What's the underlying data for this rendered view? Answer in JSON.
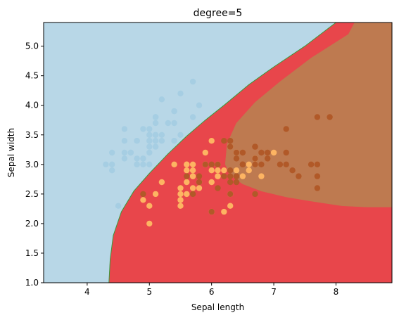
{
  "chart_data": {
    "type": "scatter",
    "title": "degree=5",
    "xlabel": "Sepal length",
    "ylabel": "Sepal width",
    "xlim": [
      3.3,
      8.9
    ],
    "ylim": [
      1.0,
      5.4
    ],
    "xticks": [
      4,
      5,
      6,
      7,
      8
    ],
    "yticks": [
      1.0,
      1.5,
      2.0,
      2.5,
      3.0,
      3.5,
      4.0,
      4.5,
      5.0
    ],
    "xtick_labels": [
      "4",
      "5",
      "6",
      "7",
      "8"
    ],
    "ytick_labels": [
      "1.0",
      "1.5",
      "2.0",
      "2.5",
      "3.0",
      "3.5",
      "4.0",
      "4.5",
      "5.0"
    ],
    "grid": false,
    "legend": "none",
    "decision_regions": [
      {
        "class": 0,
        "color": "#b8d7e7",
        "boundary": [
          [
            3.3,
            1.0
          ],
          [
            4.35,
            1.0
          ],
          [
            4.37,
            1.4
          ],
          [
            4.42,
            1.8
          ],
          [
            4.55,
            2.2
          ],
          [
            4.75,
            2.55
          ],
          [
            5.0,
            2.85
          ],
          [
            5.3,
            3.18
          ],
          [
            5.6,
            3.48
          ],
          [
            5.9,
            3.75
          ],
          [
            6.2,
            4.0
          ],
          [
            6.6,
            4.35
          ],
          [
            7.0,
            4.65
          ],
          [
            7.5,
            5.0
          ],
          [
            8.0,
            5.4
          ],
          [
            3.3,
            5.4
          ]
        ]
      },
      {
        "class": 1,
        "color": "#e8464b",
        "boundary": [
          [
            4.35,
            1.0
          ],
          [
            8.9,
            1.0
          ],
          [
            8.9,
            5.4
          ],
          [
            8.0,
            5.4
          ],
          [
            7.5,
            5.0
          ],
          [
            7.0,
            4.65
          ],
          [
            6.6,
            4.35
          ],
          [
            6.2,
            4.0
          ],
          [
            5.9,
            3.75
          ],
          [
            5.6,
            3.48
          ],
          [
            5.3,
            3.18
          ],
          [
            5.0,
            2.85
          ],
          [
            4.75,
            2.55
          ],
          [
            4.55,
            2.2
          ],
          [
            4.42,
            1.8
          ],
          [
            4.37,
            1.4
          ]
        ]
      },
      {
        "class": 2,
        "color": "#be7a50",
        "boundary": [
          [
            6.22,
            3.0
          ],
          [
            6.25,
            3.35
          ],
          [
            6.4,
            3.7
          ],
          [
            6.7,
            4.05
          ],
          [
            7.1,
            4.4
          ],
          [
            7.6,
            4.8
          ],
          [
            8.2,
            5.2
          ],
          [
            8.3,
            5.4
          ],
          [
            8.9,
            5.4
          ],
          [
            8.9,
            2.28
          ],
          [
            8.5,
            2.28
          ],
          [
            8.1,
            2.3
          ],
          [
            7.6,
            2.38
          ],
          [
            7.2,
            2.45
          ],
          [
            6.8,
            2.55
          ],
          [
            6.5,
            2.67
          ],
          [
            6.3,
            2.82
          ]
        ]
      }
    ],
    "series": [
      {
        "class": 0,
        "color": "#a6cee3",
        "x": [
          5.1,
          4.9,
          4.7,
          4.6,
          5.0,
          5.4,
          4.6,
          5.0,
          4.4,
          4.9,
          5.4,
          4.8,
          4.8,
          4.3,
          5.8,
          5.7,
          5.4,
          5.1,
          5.7,
          5.1,
          5.4,
          5.1,
          4.6,
          5.1,
          4.8,
          5.0,
          5.0,
          5.2,
          5.2,
          4.7,
          4.8,
          5.4,
          5.2,
          5.5,
          4.9,
          5.0,
          5.5,
          4.9,
          4.4,
          5.1,
          5.0,
          4.5,
          4.4,
          5.0,
          5.1,
          4.8,
          5.1,
          4.6,
          5.3,
          5.0
        ],
        "y": [
          3.5,
          3.0,
          3.2,
          3.1,
          3.6,
          3.9,
          3.4,
          3.4,
          2.9,
          3.1,
          3.7,
          3.4,
          3.0,
          3.0,
          4.0,
          4.4,
          3.9,
          3.5,
          3.8,
          3.8,
          3.4,
          3.7,
          3.6,
          3.3,
          3.4,
          3.0,
          3.4,
          3.5,
          3.4,
          3.2,
          3.1,
          3.4,
          4.1,
          4.2,
          3.1,
          3.2,
          3.5,
          3.6,
          3.0,
          3.4,
          3.5,
          2.3,
          3.2,
          3.5,
          3.8,
          3.0,
          3.8,
          3.2,
          3.7,
          3.3
        ]
      },
      {
        "class": 1,
        "color": "#fdb462",
        "x": [
          7.0,
          6.4,
          6.9,
          5.5,
          6.5,
          5.7,
          6.3,
          4.9,
          6.6,
          5.2,
          5.0,
          5.9,
          6.0,
          6.1,
          5.6,
          6.7,
          5.6,
          5.8,
          6.2,
          5.6,
          5.9,
          6.1,
          6.3,
          6.1,
          6.4,
          6.6,
          6.8,
          6.7,
          6.0,
          5.7,
          5.5,
          5.5,
          5.8,
          6.0,
          5.4,
          6.0,
          6.7,
          6.3,
          5.6,
          5.5,
          5.5,
          6.1,
          5.8,
          5.0,
          5.6,
          5.7,
          5.7,
          6.2,
          5.1,
          5.7
        ],
        "y": [
          3.2,
          3.2,
          3.1,
          2.3,
          2.8,
          2.8,
          3.3,
          2.4,
          2.9,
          2.7,
          2.0,
          3.0,
          2.2,
          2.9,
          2.9,
          3.1,
          3.0,
          2.7,
          2.2,
          2.5,
          3.2,
          2.8,
          2.5,
          2.8,
          2.9,
          3.0,
          2.8,
          3.0,
          2.9,
          2.6,
          2.4,
          2.4,
          2.7,
          2.7,
          3.0,
          3.4,
          3.1,
          2.3,
          3.0,
          2.5,
          2.6,
          3.0,
          2.6,
          2.3,
          2.7,
          3.0,
          2.9,
          2.9,
          2.5,
          2.8
        ]
      },
      {
        "class": 2,
        "color": "#b15928",
        "x": [
          6.3,
          5.8,
          7.1,
          6.3,
          6.5,
          7.6,
          4.9,
          7.3,
          6.7,
          7.2,
          6.5,
          6.4,
          6.8,
          5.7,
          5.8,
          6.4,
          6.5,
          7.7,
          7.7,
          6.0,
          6.9,
          5.6,
          7.7,
          6.3,
          6.7,
          7.2,
          6.2,
          6.1,
          6.4,
          7.2,
          7.4,
          7.9,
          6.4,
          6.3,
          6.1,
          7.7,
          6.3,
          6.4,
          6.0,
          6.9,
          6.7,
          6.9,
          5.8,
          6.8,
          6.7,
          6.7,
          6.3,
          6.5,
          6.2,
          5.9
        ],
        "y": [
          3.3,
          2.7,
          3.0,
          2.9,
          3.0,
          3.0,
          2.5,
          2.9,
          2.5,
          3.6,
          3.2,
          2.7,
          3.0,
          2.5,
          2.8,
          3.2,
          3.0,
          3.8,
          2.6,
          2.2,
          3.2,
          2.8,
          2.8,
          2.7,
          3.3,
          3.2,
          2.8,
          3.0,
          2.8,
          3.0,
          2.8,
          3.8,
          2.8,
          2.8,
          2.6,
          3.0,
          3.4,
          3.1,
          3.0,
          3.1,
          3.1,
          3.1,
          2.7,
          3.2,
          3.3,
          3.0,
          2.5,
          3.0,
          3.4,
          3.0
        ]
      }
    ]
  }
}
